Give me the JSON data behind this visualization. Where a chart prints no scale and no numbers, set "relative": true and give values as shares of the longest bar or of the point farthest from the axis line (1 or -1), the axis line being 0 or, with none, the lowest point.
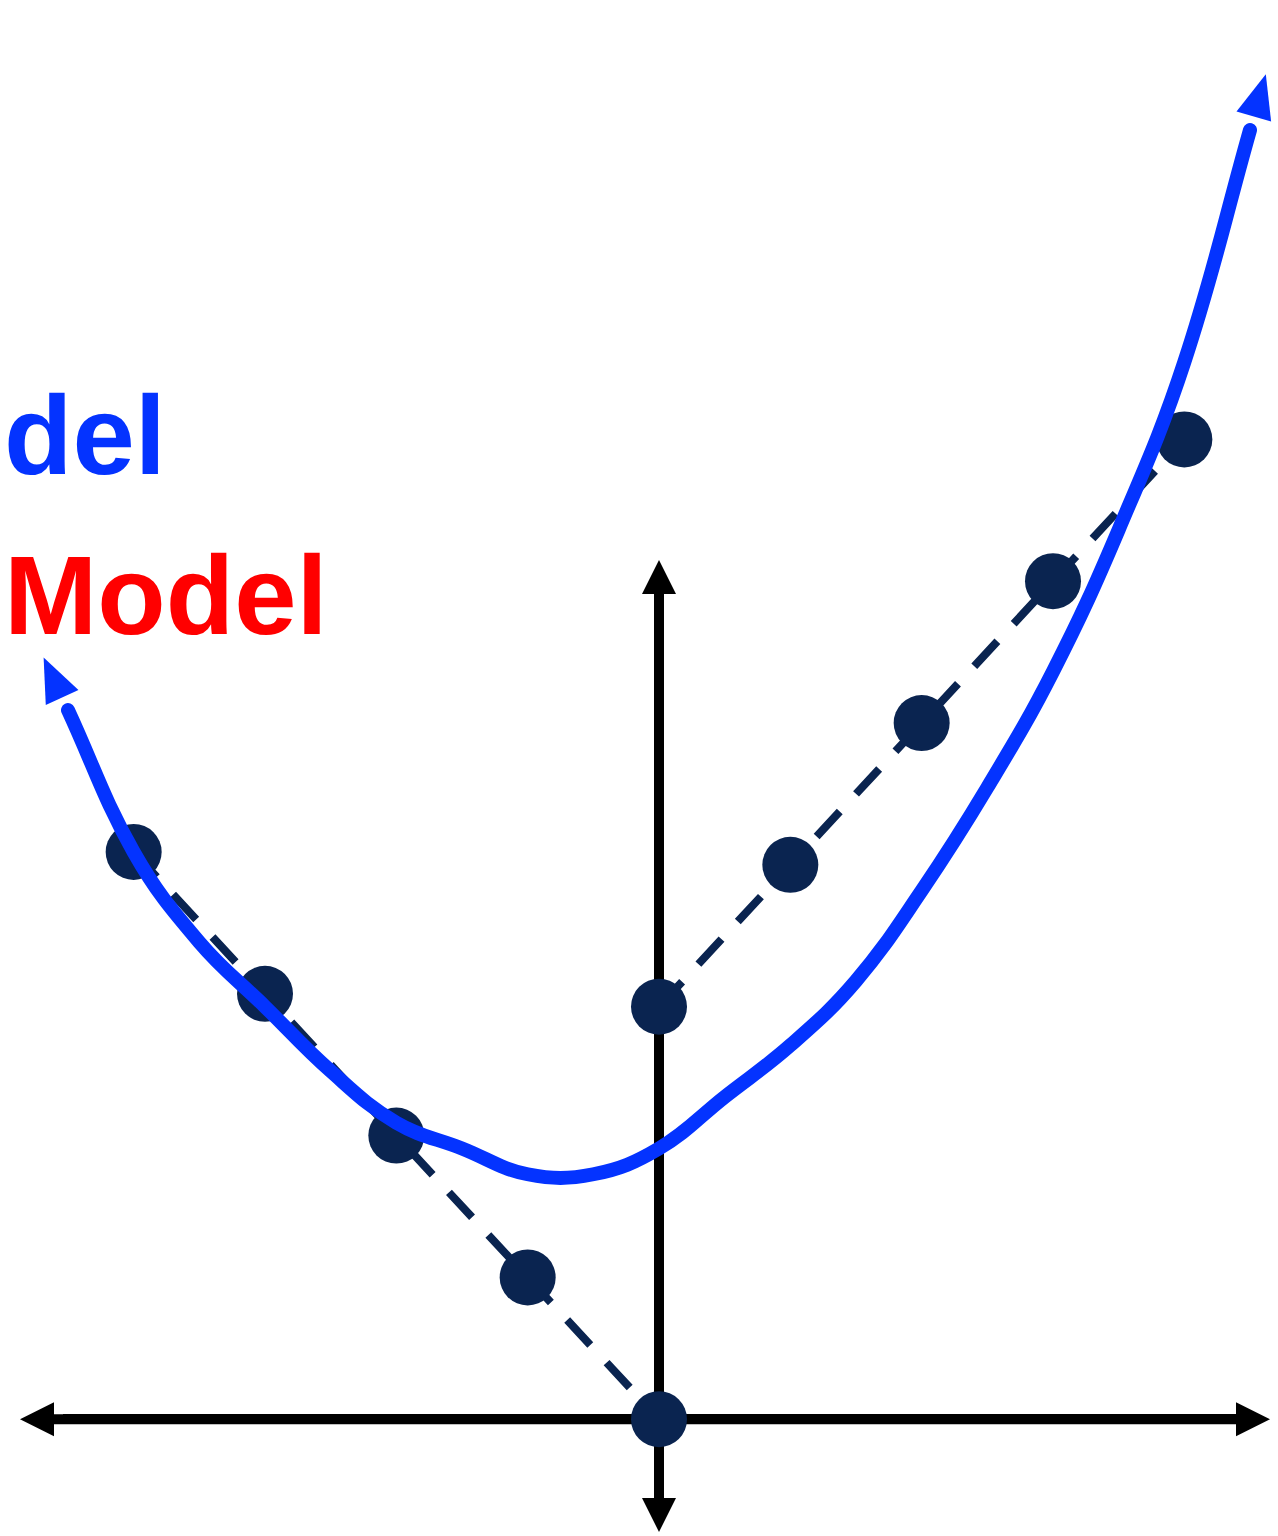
{
  "chart_data": {
    "type": "line",
    "relative": true,
    "categories": [
      null,
      null,
      null,
      null,
      null,
      null,
      null,
      null,
      null,
      null,
      null,
      null,
      null,
      null,
      null,
      null,
      null,
      null,
      null
    ],
    "annotations": [
      "Model"
    ],
    "series": [
      {
        "name": "del",
        "color": "#0433ff",
        "line_style": "solid",
        "marker": "none",
        "values": [
          0.55,
          0.44,
          0.37,
          0.32,
          0.27,
          0.23,
          0.21,
          0.19,
          0.19,
          0.21,
          0.25,
          0.29,
          0.34,
          0.41,
          0.49,
          0.58,
          0.69,
          0.82,
          1
        ]
      },
      {
        "color": "#0a2450",
        "line_style": "dashed",
        "marker": "circle",
        "values": [
          null,
          0.44,
          null,
          0.33,
          null,
          0.22,
          null,
          0.11,
          null,
          0,
          null,
          null,
          null,
          null,
          null,
          null,
          null,
          null,
          null
        ]
      },
      {
        "color": "#0a2450",
        "line_style": "dashed",
        "marker": "circle",
        "values": [
          null,
          null,
          null,
          null,
          null,
          null,
          null,
          null,
          null,
          0.32,
          null,
          0.43,
          null,
          0.54,
          null,
          0.65,
          null,
          0.76,
          null
        ]
      }
    ]
  }
}
